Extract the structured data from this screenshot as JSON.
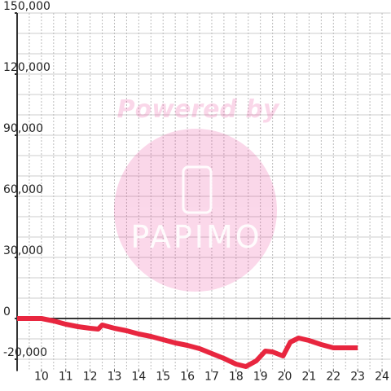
{
  "chart_data": {
    "type": "line",
    "watermark": [
      "Powered by",
      "PAPIMO"
    ],
    "x": [
      9,
      10,
      10.5,
      11,
      11.5,
      12,
      12.33,
      12.5,
      13,
      13.5,
      14,
      14.5,
      15,
      15.5,
      16,
      16.5,
      17,
      17.5,
      18,
      18.4,
      18.83,
      19.2,
      19.5,
      19.93,
      20.23,
      20.57,
      21,
      21.5,
      22,
      23
    ],
    "series": [
      {
        "color": "#e8263f",
        "values": [
          0,
          0,
          -1200,
          -2800,
          -4000,
          -4800,
          -5200,
          -3200,
          -4800,
          -6000,
          -7600,
          -8800,
          -10400,
          -12000,
          -13200,
          -14800,
          -17200,
          -19600,
          -22400,
          -23600,
          -20800,
          -16000,
          -16400,
          -18400,
          -11600,
          -9600,
          -10800,
          -12800,
          -14400,
          -14400
        ]
      }
    ],
    "xlim": [
      9,
      24.35
    ],
    "ylim": [
      -25000,
      150000
    ],
    "xticks": [
      10,
      11,
      12,
      13,
      14,
      15,
      16,
      17,
      18,
      19,
      20,
      21,
      22,
      23,
      24
    ],
    "xgrid": [
      9.5,
      10,
      10.5,
      11,
      11.5,
      12,
      12.5,
      13,
      13.5,
      14,
      14.5,
      15,
      15.5,
      16,
      16.5,
      17,
      17.5,
      18,
      18.5,
      19,
      19.5,
      20,
      20.5,
      21,
      21.5,
      22,
      22.5,
      23,
      23.5,
      24
    ],
    "yticks": [
      {
        "value": -20000,
        "label": "-20,000"
      },
      0,
      {
        "value": 30000,
        "label": "30,000"
      },
      {
        "value": 60000,
        "label": "60,000"
      },
      {
        "value": 90000,
        "label": "90,000"
      },
      {
        "value": 120000,
        "label": "120,000"
      },
      {
        "value": 150000,
        "label": "150,000"
      }
    ],
    "ygrid": [
      -20000,
      -10000,
      10000,
      20000,
      30000,
      40000,
      50000,
      60000,
      70000,
      80000,
      90000,
      100000,
      110000,
      120000,
      130000,
      140000,
      150000
    ],
    "grid": true
  }
}
